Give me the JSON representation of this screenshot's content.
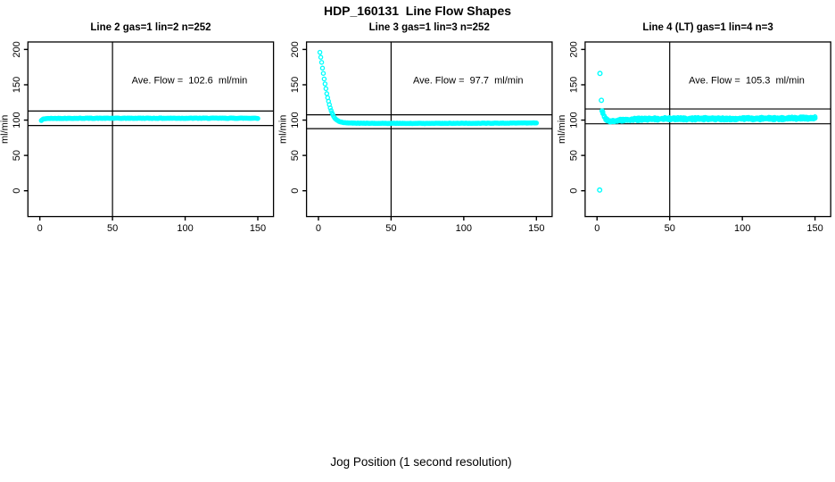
{
  "chart_data": {
    "type": "scatter",
    "title": "HDP_160131  Line Flow Shapes",
    "xlabel": "Jog Position (1 second resolution)",
    "ylabel": "ml/min",
    "marker_color": "#00FFFF",
    "axis_color": "#000000",
    "x_ticks": [
      0,
      50,
      100,
      150
    ],
    "y_ticks": [
      0,
      50,
      100,
      150,
      200
    ],
    "xlim": [
      -8.2,
      160.8
    ],
    "ylim": [
      -36.5,
      210.6
    ],
    "vline_x": 50,
    "grid": false,
    "legend": "none",
    "annotation_anchor": {
      "x": 103,
      "y": 152
    },
    "panels": [
      {
        "title": "Line 2 gas=1 lin=2 n=252",
        "annotation": "Ave. Flow =  102.6  ml/min",
        "ave_flow": 102.6,
        "n": 252,
        "hlines": [
          112.9,
          92.3
        ],
        "x_start": 1,
        "x_end": 150,
        "points_n": 252,
        "series_count": 1,
        "noise": 0.35,
        "profile": [
          [
            1,
            99.3
          ],
          [
            1.6,
            100.5
          ],
          [
            2.5,
            101.6
          ],
          [
            4,
            102.1
          ],
          [
            8,
            102.4
          ],
          [
            30,
            102.6
          ],
          [
            150,
            102.7
          ]
        ],
        "outliers": []
      },
      {
        "title": "Line 3 gas=1 lin=3 n=252",
        "annotation": "Ave. Flow =  97.7  ml/min",
        "ave_flow": 97.7,
        "n": 252,
        "hlines": [
          107.5,
          87.9
        ],
        "x_start": 1,
        "x_end": 150,
        "points_n": 252,
        "series_count": 1,
        "noise": 0.3,
        "profile": [
          [
            1,
            196
          ],
          [
            2,
            184
          ],
          [
            3,
            171
          ],
          [
            4,
            158
          ],
          [
            5,
            146
          ],
          [
            6,
            135
          ],
          [
            7,
            126
          ],
          [
            8,
            118
          ],
          [
            9,
            112
          ],
          [
            10,
            107
          ],
          [
            11,
            103.5
          ],
          [
            12,
            101
          ],
          [
            13,
            99.5
          ],
          [
            14,
            98.3
          ],
          [
            15,
            97.5
          ],
          [
            17,
            96.6
          ],
          [
            20,
            96
          ],
          [
            30,
            95.5
          ],
          [
            60,
            95.3
          ],
          [
            120,
            95.6
          ],
          [
            150,
            96
          ]
        ],
        "outliers": []
      },
      {
        "title": "Line 4 (LT) gas=1 lin=4 n=3",
        "annotation": "Ave. Flow =  105.3  ml/min",
        "ave_flow": 105.3,
        "n": 3,
        "hlines": [
          115.8,
          94.8
        ],
        "x_start": 4,
        "x_end": 150,
        "points_n": 148,
        "series_count": 3,
        "noise": 1.0,
        "profile": [
          [
            4,
            111
          ],
          [
            4.6,
            107
          ],
          [
            5.5,
            103
          ],
          [
            7,
            99.5
          ],
          [
            9,
            98.2
          ],
          [
            12,
            98.6
          ],
          [
            16,
            99.8
          ],
          [
            22,
            100.8
          ],
          [
            30,
            101.3
          ],
          [
            45,
            101.8
          ],
          [
            70,
            102
          ],
          [
            100,
            102
          ],
          [
            130,
            102.3
          ],
          [
            150,
            103
          ]
        ],
        "outliers": [
          [
            2,
            166
          ],
          [
            1.8,
            1
          ],
          [
            3,
            128
          ],
          [
            3.5,
            113
          ]
        ]
      }
    ]
  },
  "layout_note": "three R-style scatter panels, cyan open-circle markers, reference lines at ave*1.1 and ave*0.9, vertical marker at x=50"
}
